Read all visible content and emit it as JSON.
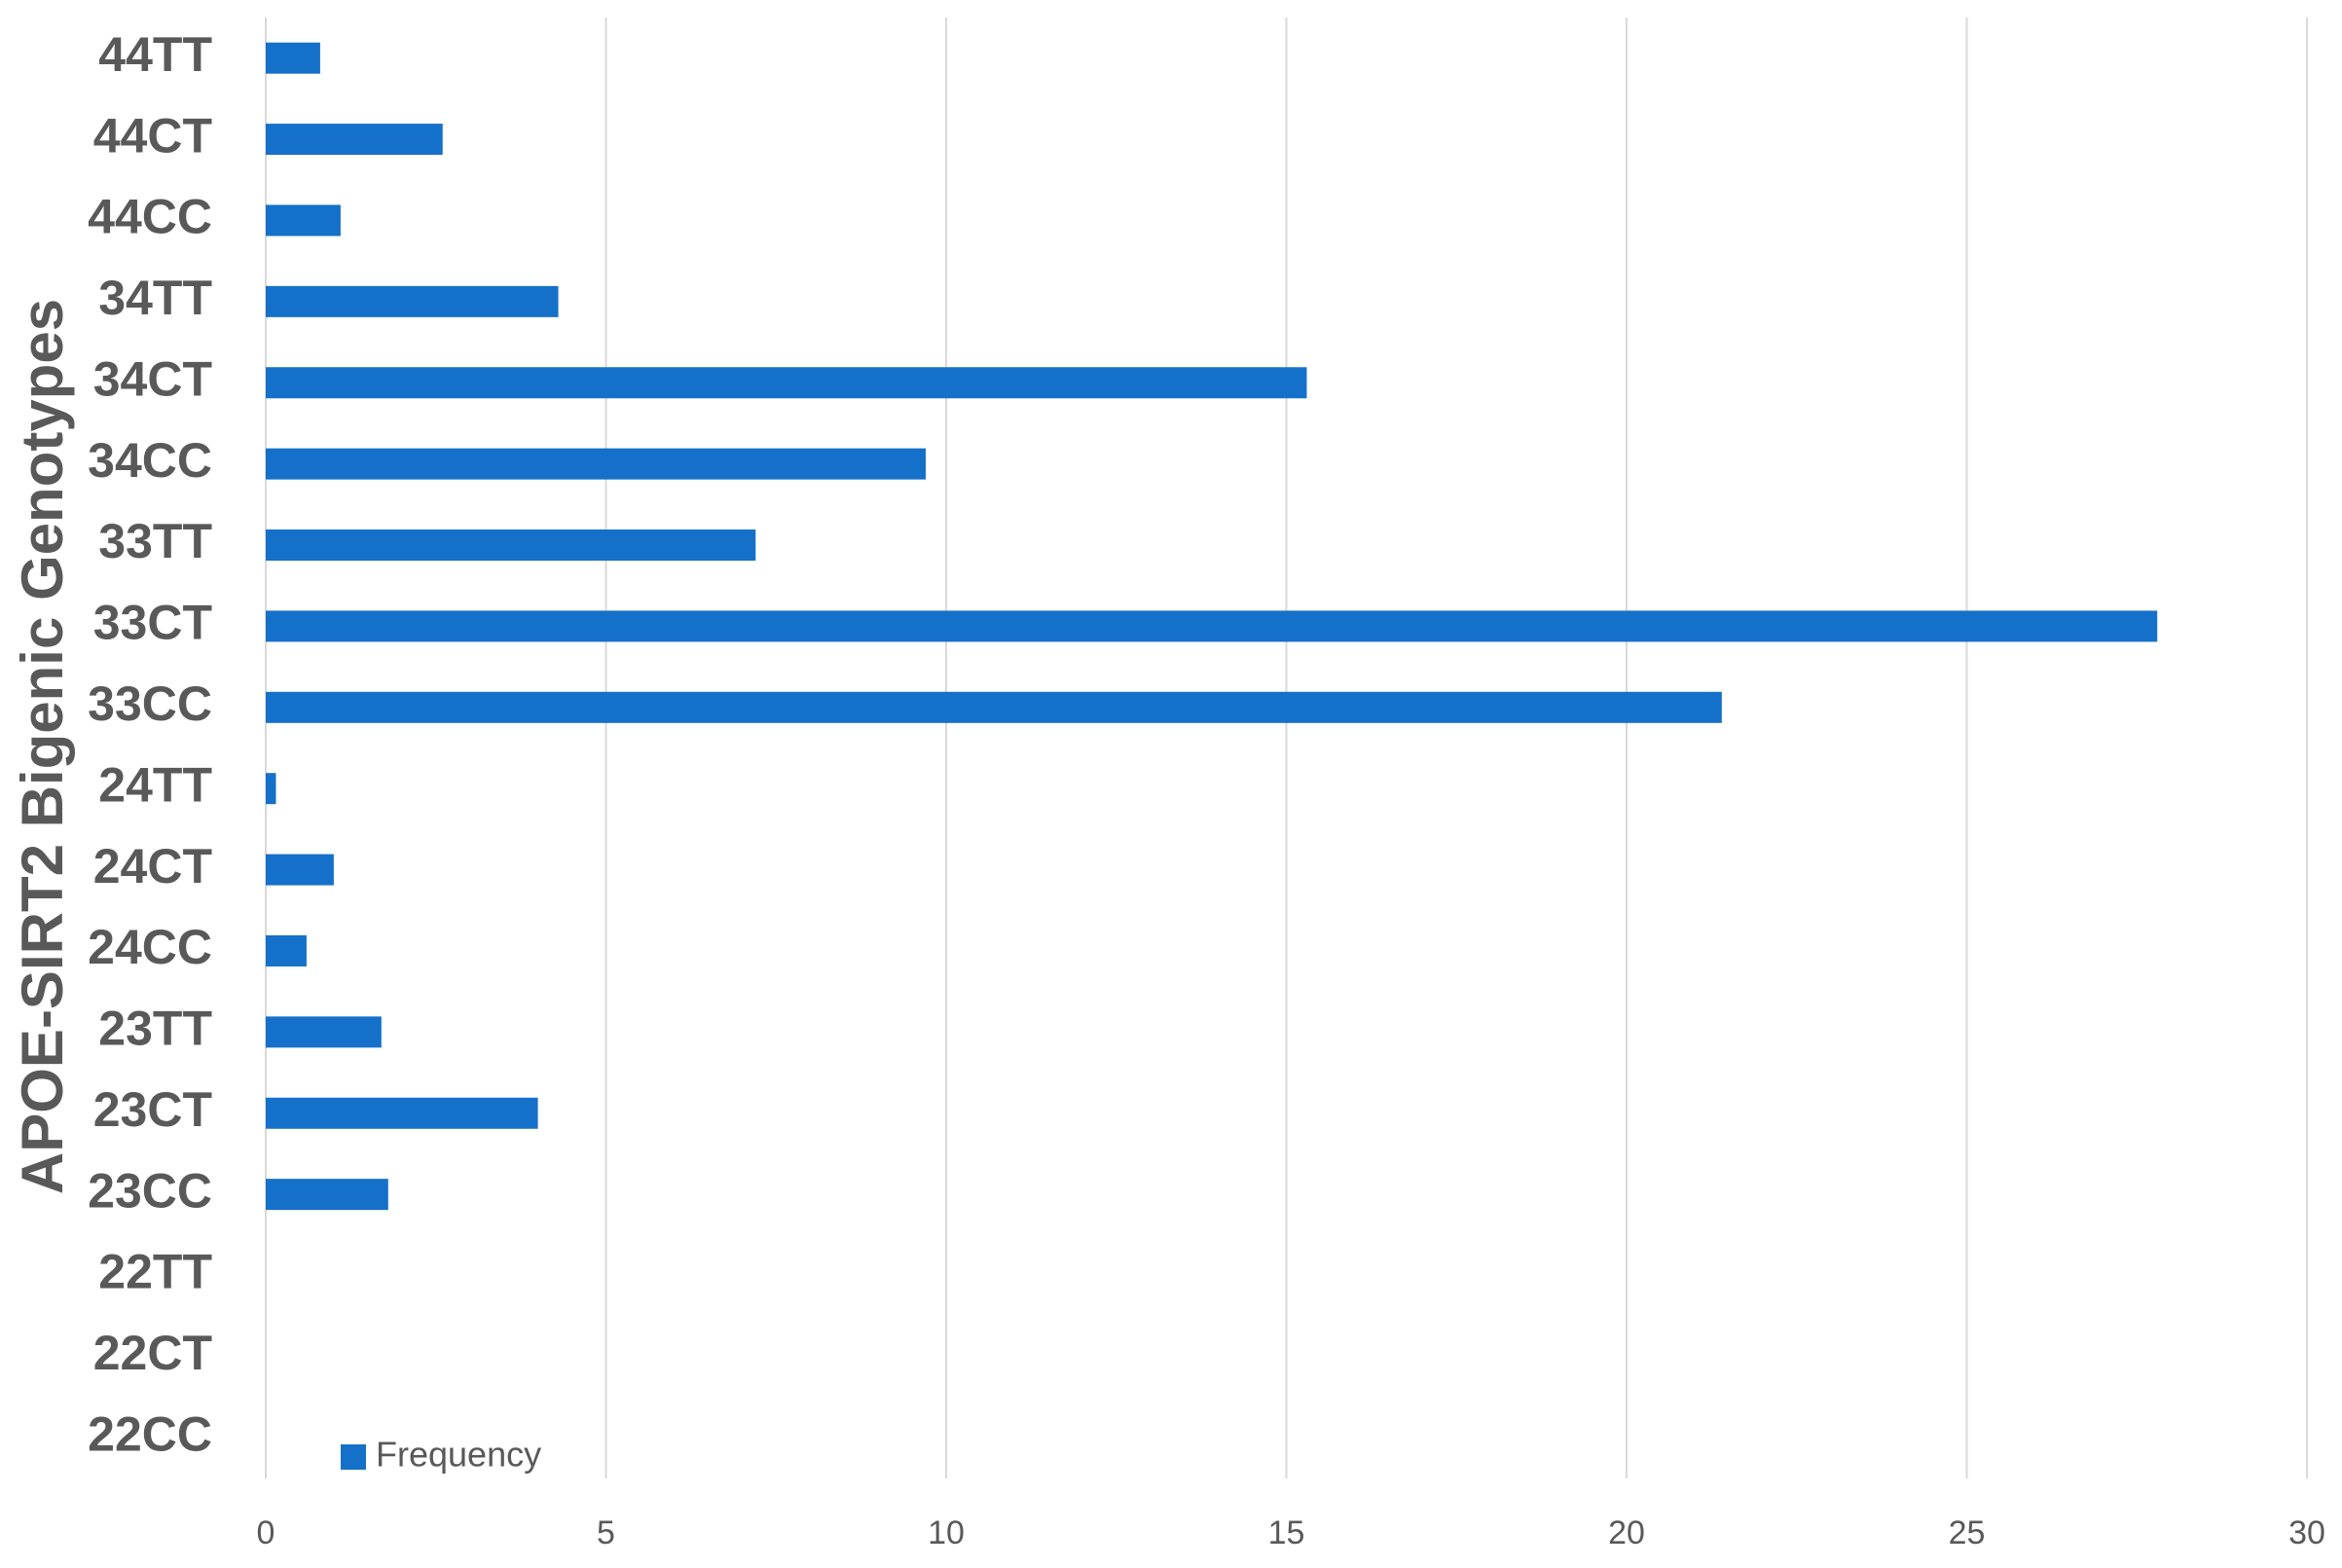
{
  "chart_data": {
    "type": "bar",
    "orientation": "horizontal",
    "y_label": "APOE-SIRT2 Bigenic Genotypes",
    "categories": [
      "44TT",
      "44CT",
      "44CC",
      "34TT",
      "34CT",
      "34CC",
      "33TT",
      "33CT",
      "33CC",
      "24TT",
      "24CT",
      "24CC",
      "23TT",
      "23CT",
      "23CC",
      "22TT",
      "22CT",
      "22CC"
    ],
    "series": [
      {
        "name": "Frequency",
        "color": "#1570c9",
        "values": [
          0.8,
          2.6,
          1.1,
          4.3,
          15.3,
          9.7,
          7.2,
          27.8,
          21.4,
          0.15,
          1.0,
          0.6,
          1.7,
          4.0,
          1.8,
          0,
          0,
          0
        ]
      }
    ],
    "xlim": [
      0,
      30
    ],
    "xticks": [
      0,
      5,
      10,
      15,
      20,
      25,
      30
    ],
    "grid": true,
    "legend": "bottom-left"
  }
}
